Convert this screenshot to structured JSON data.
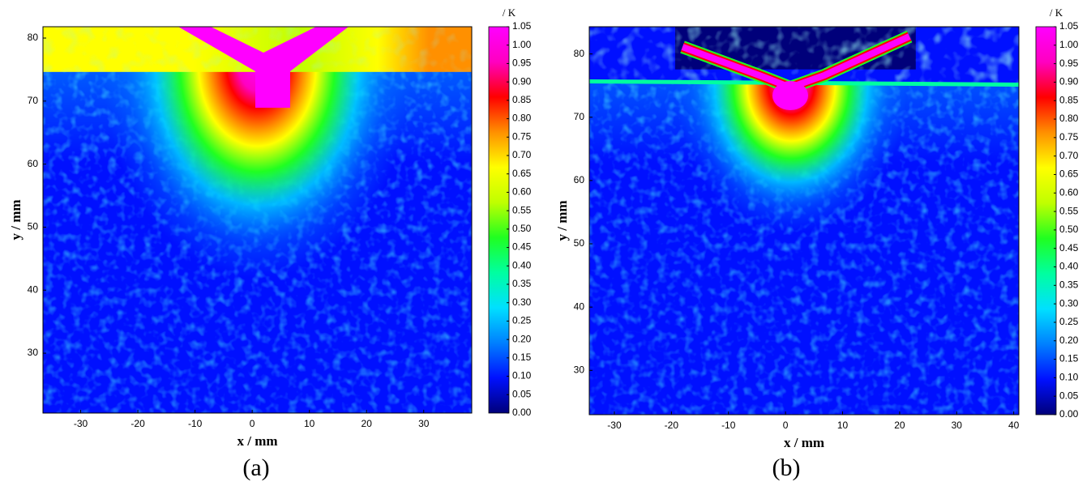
{
  "chart_data": [
    {
      "type": "heatmap",
      "panel_label": "(a)",
      "x_label": "x / mm",
      "y_label": "y / mm",
      "xlim": [
        -36.6,
        38.4
      ],
      "ylim": [
        20.5,
        81.8
      ],
      "xticks": [
        -30,
        -20,
        -10,
        0,
        10,
        20,
        30
      ],
      "yticks": [
        30,
        40,
        50,
        60,
        70,
        80
      ],
      "colormap": [
        "#00007a",
        "#0010ff",
        "#0080ff",
        "#00e0ff",
        "#00ffa0",
        "#20ff20",
        "#c0ff00",
        "#ffff00",
        "#ff9000",
        "#ff0000",
        "#ff00c0",
        "#ff00ff"
      ],
      "colorbar": {
        "label": "/ K",
        "lim": [
          0,
          1.05
        ],
        "ticks": [
          {
            "value": 0,
            "label": "0.00"
          },
          0.05,
          {
            "value": 0.1,
            "label": "0.10"
          },
          0.15,
          {
            "value": 0.2,
            "label": "0.20"
          },
          0.25,
          {
            "value": 0.3,
            "label": "0.30"
          },
          0.35,
          {
            "value": 0.4,
            "label": "0.40"
          },
          0.45,
          {
            "value": 0.5,
            "label": "0.50"
          },
          0.55,
          {
            "value": 0.6,
            "label": "0.60"
          },
          0.65,
          {
            "value": 0.7,
            "label": "0.70"
          },
          0.75,
          {
            "value": 0.8,
            "label": "0.80"
          },
          0.85,
          {
            "value": 0.9,
            "label": "0.90"
          },
          0.95,
          {
            "value": 1,
            "label": "1.00"
          },
          1.05
        ]
      }
    },
    {
      "type": "heatmap",
      "panel_label": "(b)",
      "x_label": "x / mm",
      "y_label": "y / mm",
      "xlim": [
        -34.4,
        40.9
      ],
      "ylim": [
        23.0,
        84.3
      ],
      "xticks": [
        -30,
        -20,
        -10,
        0,
        10,
        20,
        30,
        40
      ],
      "yticks": [
        30,
        40,
        50,
        60,
        70,
        80
      ],
      "colormap": [
        "#00007a",
        "#0010ff",
        "#0080ff",
        "#00e0ff",
        "#00ffa0",
        "#20ff20",
        "#c0ff00",
        "#ffff00",
        "#ff9000",
        "#ff0000",
        "#ff00c0",
        "#ff00ff"
      ],
      "colorbar": {
        "label": "/ K",
        "lim": [
          0,
          1.05
        ],
        "ticks": [
          {
            "value": 0,
            "label": "0.00"
          },
          0.05,
          {
            "value": 0.1,
            "label": "0.10"
          },
          0.15,
          {
            "value": 0.2,
            "label": "0.20"
          },
          0.25,
          {
            "value": 0.3,
            "label": "0.30"
          },
          0.35,
          {
            "value": 0.4,
            "label": "0.40"
          },
          0.45,
          {
            "value": 0.5,
            "label": "0.50"
          },
          0.55,
          {
            "value": 0.6,
            "label": "0.60"
          },
          0.65,
          {
            "value": 0.7,
            "label": "0.70"
          },
          0.75,
          {
            "value": 0.8,
            "label": "0.80"
          },
          0.85,
          {
            "value": 0.9,
            "label": "0.90"
          },
          0.95,
          {
            "value": 1,
            "label": "1.00"
          },
          1.05
        ]
      }
    }
  ]
}
